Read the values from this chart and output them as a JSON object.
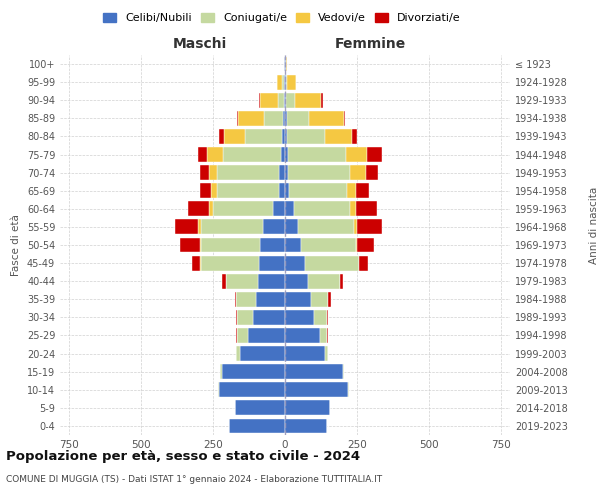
{
  "age_groups": [
    "0-4",
    "5-9",
    "10-14",
    "15-19",
    "20-24",
    "25-29",
    "30-34",
    "35-39",
    "40-44",
    "45-49",
    "50-54",
    "55-59",
    "60-64",
    "65-69",
    "70-74",
    "75-79",
    "80-84",
    "85-89",
    "90-94",
    "95-99",
    "100+"
  ],
  "birth_years": [
    "2019-2023",
    "2014-2018",
    "2009-2013",
    "2004-2008",
    "1999-2003",
    "1994-1998",
    "1989-1993",
    "1984-1988",
    "1979-1983",
    "1974-1978",
    "1969-1973",
    "1964-1968",
    "1959-1963",
    "1954-1958",
    "1949-1953",
    "1944-1948",
    "1939-1943",
    "1934-1938",
    "1929-1933",
    "1924-1928",
    "≤ 1923"
  ],
  "colors": {
    "celibi": "#4472c4",
    "coniugati": "#c5d9a0",
    "vedovi": "#f5c842",
    "divorziati": "#cc0000"
  },
  "maschi": {
    "celibi": [
      195,
      175,
      230,
      220,
      155,
      130,
      110,
      100,
      95,
      90,
      85,
      75,
      40,
      20,
      20,
      15,
      10,
      8,
      5,
      4,
      2
    ],
    "coniugati": [
      0,
      0,
      3,
      5,
      15,
      35,
      55,
      70,
      110,
      200,
      205,
      215,
      210,
      215,
      215,
      200,
      130,
      65,
      20,
      5,
      0
    ],
    "vedovi": [
      0,
      0,
      0,
      0,
      0,
      0,
      0,
      0,
      0,
      3,
      5,
      10,
      15,
      20,
      30,
      55,
      70,
      90,
      60,
      20,
      3
    ],
    "divorziati": [
      0,
      0,
      0,
      0,
      0,
      5,
      5,
      5,
      15,
      30,
      70,
      80,
      70,
      40,
      30,
      30,
      20,
      5,
      5,
      0,
      0
    ]
  },
  "femmine": {
    "celibi": [
      145,
      155,
      220,
      200,
      140,
      120,
      100,
      90,
      80,
      70,
      55,
      45,
      30,
      15,
      12,
      10,
      8,
      8,
      5,
      3,
      2
    ],
    "coniugati": [
      0,
      0,
      2,
      5,
      10,
      25,
      45,
      60,
      110,
      185,
      190,
      195,
      195,
      200,
      215,
      200,
      130,
      75,
      30,
      5,
      0
    ],
    "vedovi": [
      0,
      0,
      0,
      0,
      0,
      0,
      0,
      0,
      0,
      3,
      5,
      10,
      20,
      30,
      55,
      75,
      95,
      120,
      90,
      30,
      5
    ],
    "divorziati": [
      0,
      0,
      0,
      0,
      0,
      5,
      5,
      10,
      10,
      30,
      60,
      85,
      75,
      45,
      40,
      50,
      15,
      5,
      5,
      0,
      0
    ]
  },
  "title": "Popolazione per età, sesso e stato civile - 2024",
  "subtitle": "COMUNE DI MUGGIA (TS) - Dati ISTAT 1° gennaio 2024 - Elaborazione TUTTITALIA.IT",
  "xlabel_left": "Maschi",
  "xlabel_right": "Femmine",
  "ylabel_left": "Fasce di età",
  "ylabel_right": "Anni di nascita",
  "xlim": 780,
  "legend_labels": [
    "Celibi/Nubili",
    "Coniugati/e",
    "Vedovi/e",
    "Divorziati/e"
  ],
  "background_color": "#ffffff",
  "grid_color": "#cccccc"
}
